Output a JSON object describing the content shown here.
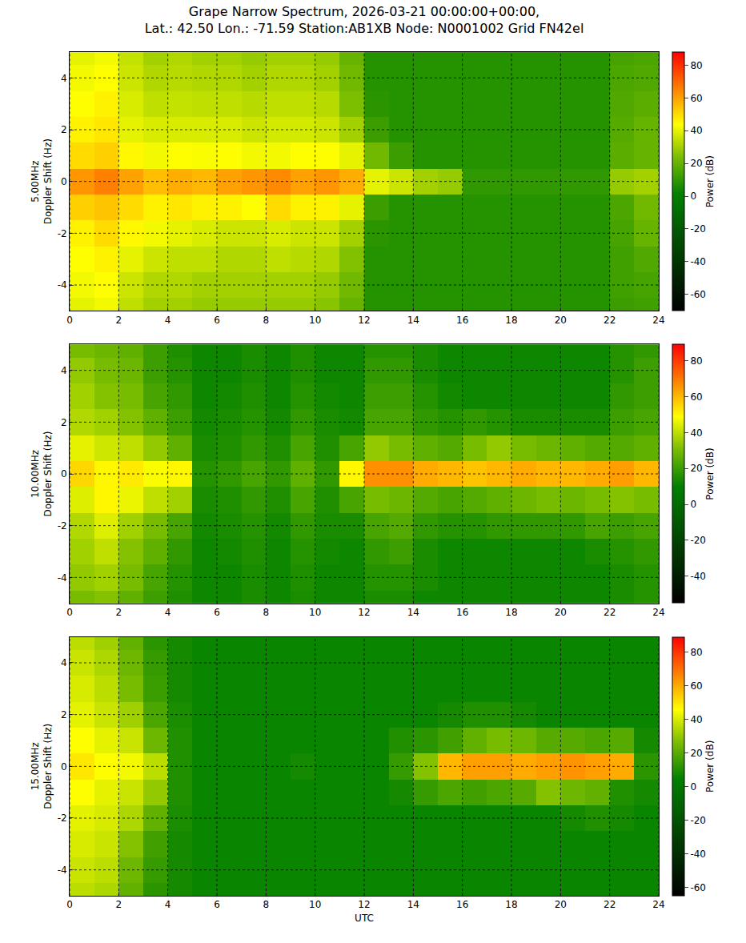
{
  "title": "Grape Narrow Spectrum, 2026-03-21 00:00:00+00:00,\nLat.: 42.50 Lon.: -71.59 Station:AB1XB Node: N0001002 Grid FN42el",
  "chart_data": [
    {
      "type": "heatmap",
      "y_label": "5.00MHz\nDoppler Shift (Hz)",
      "xlim": [
        0,
        24
      ],
      "xticks": [
        0,
        2,
        4,
        6,
        8,
        10,
        12,
        14,
        16,
        18,
        20,
        22,
        24
      ],
      "ylim": [
        -5,
        5
      ],
      "yticks": [
        -4,
        -2,
        0,
        2,
        4
      ],
      "grid": true,
      "x": [
        0.5,
        1.5,
        2.5,
        3.5,
        4.5,
        5.5,
        6.5,
        7.5,
        8.5,
        9.5,
        10.5,
        11.5,
        12.5,
        13.5,
        14.5,
        15.5,
        16.5,
        17.5,
        18.5,
        19.5,
        20.5,
        21.5,
        22.5,
        23.5
      ],
      "y": [
        -5,
        -4,
        -3,
        -2,
        -1,
        0,
        1,
        2,
        3,
        4,
        5
      ],
      "z": [
        [
          40,
          42,
          34,
          30,
          30,
          28,
          28,
          28,
          28,
          28,
          26,
          20,
          8,
          8,
          8,
          8,
          8,
          8,
          8,
          8,
          8,
          8,
          12,
          13
        ],
        [
          42,
          44,
          36,
          32,
          32,
          30,
          30,
          30,
          30,
          30,
          28,
          22,
          8,
          8,
          8,
          8,
          8,
          8,
          8,
          8,
          8,
          8,
          13,
          14
        ],
        [
          44,
          46,
          40,
          36,
          34,
          34,
          32,
          32,
          34,
          33,
          32,
          25,
          8,
          8,
          8,
          8,
          8,
          8,
          8,
          8,
          8,
          8,
          13,
          16
        ],
        [
          46,
          50,
          45,
          42,
          40,
          38,
          36,
          36,
          38,
          36,
          36,
          30,
          9,
          8,
          8,
          8,
          8,
          8,
          8,
          8,
          8,
          8,
          14,
          20
        ],
        [
          52,
          54,
          50,
          46,
          48,
          46,
          46,
          44,
          50,
          46,
          46,
          40,
          12,
          8,
          8,
          8,
          8,
          8,
          8,
          8,
          8,
          8,
          15,
          22
        ],
        [
          62,
          66,
          60,
          55,
          58,
          56,
          60,
          62,
          64,
          60,
          62,
          58,
          40,
          36,
          30,
          28,
          10,
          10,
          10,
          10,
          10,
          10,
          28,
          30
        ],
        [
          50,
          52,
          45,
          42,
          44,
          43,
          44,
          42,
          42,
          44,
          44,
          40,
          22,
          12,
          8,
          8,
          8,
          8,
          8,
          8,
          8,
          8,
          18,
          20
        ],
        [
          46,
          48,
          40,
          38,
          38,
          38,
          38,
          36,
          37,
          37,
          36,
          30,
          12,
          8,
          8,
          8,
          8,
          8,
          8,
          8,
          8,
          8,
          17,
          20
        ],
        [
          44,
          46,
          38,
          34,
          35,
          34,
          34,
          33,
          34,
          34,
          33,
          24,
          9,
          8,
          8,
          8,
          8,
          8,
          8,
          8,
          8,
          8,
          16,
          18
        ],
        [
          42,
          44,
          36,
          32,
          33,
          32,
          32,
          30,
          32,
          32,
          30,
          22,
          8,
          8,
          8,
          8,
          8,
          8,
          8,
          8,
          8,
          8,
          15,
          16
        ],
        [
          40,
          42,
          35,
          30,
          32,
          30,
          30,
          28,
          30,
          30,
          28,
          20,
          8,
          8,
          8,
          8,
          8,
          8,
          8,
          8,
          8,
          8,
          14,
          15
        ]
      ],
      "colorbar": {
        "title": "Power (dB)",
        "range": [
          -70,
          88
        ],
        "ticks": [
          -60,
          -40,
          -20,
          0,
          20,
          40,
          60,
          80
        ]
      }
    },
    {
      "type": "heatmap",
      "y_label": "10.00MHz\nDoppler Shift (Hz)",
      "xlim": [
        0,
        24
      ],
      "xticks": [
        0,
        2,
        4,
        6,
        8,
        10,
        12,
        14,
        16,
        18,
        20,
        22,
        24
      ],
      "ylim": [
        -5,
        5
      ],
      "yticks": [
        -4,
        -2,
        0,
        2,
        4
      ],
      "grid": true,
      "x": [
        0.5,
        1.5,
        2.5,
        3.5,
        4.5,
        5.5,
        6.5,
        7.5,
        8.5,
        9.5,
        10.5,
        11.5,
        12.5,
        13.5,
        14.5,
        15.5,
        16.5,
        17.5,
        18.5,
        19.5,
        20.5,
        21.5,
        22.5,
        23.5
      ],
      "y": [
        -5,
        -4,
        -3,
        -2,
        -1,
        0,
        1,
        2,
        3,
        4,
        5
      ],
      "z": [
        [
          30,
          32,
          26,
          20,
          15,
          12,
          12,
          14,
          12,
          14,
          12,
          12,
          14,
          14,
          12,
          12,
          12,
          12,
          12,
          12,
          12,
          12,
          14,
          16
        ],
        [
          34,
          36,
          30,
          22,
          16,
          12,
          12,
          14,
          12,
          15,
          12,
          12,
          16,
          16,
          14,
          12,
          12,
          12,
          12,
          12,
          12,
          12,
          14,
          16
        ],
        [
          36,
          40,
          32,
          26,
          18,
          12,
          13,
          15,
          12,
          16,
          13,
          12,
          18,
          20,
          14,
          12,
          12,
          12,
          12,
          12,
          12,
          14,
          16,
          18
        ],
        [
          38,
          44,
          36,
          30,
          22,
          13,
          14,
          16,
          13,
          18,
          14,
          14,
          22,
          24,
          18,
          16,
          16,
          18,
          18,
          18,
          18,
          22,
          20,
          22
        ],
        [
          44,
          50,
          46,
          40,
          36,
          14,
          15,
          18,
          15,
          22,
          15,
          22,
          30,
          28,
          24,
          22,
          24,
          26,
          28,
          30,
          28,
          30,
          32,
          30
        ],
        [
          55,
          50,
          52,
          48,
          50,
          16,
          18,
          22,
          18,
          26,
          18,
          50,
          66,
          66,
          62,
          60,
          58,
          60,
          62,
          60,
          60,
          62,
          64,
          60
        ],
        [
          45,
          42,
          40,
          34,
          26,
          14,
          15,
          18,
          15,
          22,
          15,
          22,
          34,
          30,
          26,
          24,
          30,
          34,
          30,
          28,
          26,
          24,
          24,
          26
        ],
        [
          38,
          36,
          32,
          26,
          20,
          13,
          14,
          16,
          13,
          18,
          14,
          13,
          22,
          22,
          18,
          16,
          18,
          16,
          14,
          14,
          14,
          14,
          20,
          22
        ],
        [
          36,
          32,
          30,
          22,
          18,
          12,
          13,
          15,
          12,
          16,
          13,
          12,
          20,
          20,
          16,
          13,
          12,
          12,
          12,
          12,
          12,
          12,
          18,
          20
        ],
        [
          34,
          30,
          28,
          20,
          16,
          12,
          12,
          14,
          12,
          15,
          12,
          12,
          18,
          18,
          14,
          12,
          12,
          12,
          12,
          12,
          12,
          12,
          16,
          20
        ],
        [
          30,
          28,
          26,
          20,
          15,
          12,
          12,
          14,
          12,
          15,
          12,
          12,
          16,
          16,
          14,
          12,
          12,
          12,
          12,
          12,
          12,
          12,
          16,
          18
        ]
      ],
      "colorbar": {
        "title": "Power (dB)",
        "range": [
          -55,
          89
        ],
        "ticks": [
          -40,
          -20,
          0,
          20,
          40,
          60,
          80
        ]
      }
    },
    {
      "type": "heatmap",
      "y_label": "15.00MHz\nDoppler Shift (Hz)",
      "x_label": "UTC",
      "xlim": [
        0,
        24
      ],
      "xticks": [
        0,
        2,
        4,
        6,
        8,
        10,
        12,
        14,
        16,
        18,
        20,
        22,
        24
      ],
      "ylim": [
        -5,
        5
      ],
      "yticks": [
        -4,
        -2,
        0,
        2,
        4
      ],
      "grid": true,
      "x": [
        0.5,
        1.5,
        2.5,
        3.5,
        4.5,
        5.5,
        6.5,
        7.5,
        8.5,
        9.5,
        10.5,
        11.5,
        12.5,
        13.5,
        14.5,
        15.5,
        16.5,
        17.5,
        18.5,
        19.5,
        20.5,
        21.5,
        22.5,
        23.5
      ],
      "y": [
        -5,
        -4,
        -3,
        -2,
        -1,
        0,
        1,
        2,
        3,
        4,
        5
      ],
      "z": [
        [
          36,
          34,
          22,
          12,
          8,
          6,
          6,
          6,
          6,
          6,
          6,
          6,
          6,
          6,
          6,
          6,
          6,
          6,
          6,
          6,
          6,
          6,
          6,
          6
        ],
        [
          38,
          36,
          24,
          14,
          8,
          6,
          6,
          6,
          6,
          6,
          6,
          6,
          6,
          6,
          6,
          6,
          6,
          6,
          6,
          6,
          6,
          6,
          6,
          6
        ],
        [
          40,
          38,
          28,
          16,
          8,
          6,
          6,
          6,
          6,
          6,
          6,
          6,
          6,
          6,
          6,
          6,
          6,
          6,
          6,
          6,
          6,
          6,
          6,
          6
        ],
        [
          42,
          40,
          34,
          22,
          9,
          6,
          6,
          6,
          6,
          6,
          6,
          6,
          6,
          6,
          6,
          6,
          6,
          6,
          6,
          6,
          8,
          10,
          8,
          6
        ],
        [
          46,
          42,
          38,
          30,
          10,
          6,
          6,
          6,
          6,
          6,
          6,
          6,
          6,
          8,
          14,
          18,
          16,
          18,
          20,
          28,
          24,
          22,
          10,
          8
        ],
        [
          50,
          46,
          44,
          36,
          10,
          6,
          6,
          6,
          6,
          8,
          6,
          6,
          6,
          14,
          28,
          58,
          62,
          62,
          60,
          62,
          64,
          62,
          60,
          12
        ],
        [
          46,
          42,
          38,
          24,
          10,
          6,
          6,
          6,
          6,
          6,
          6,
          6,
          6,
          10,
          12,
          16,
          22,
          26,
          24,
          20,
          20,
          18,
          20,
          8
        ],
        [
          42,
          38,
          32,
          18,
          9,
          6,
          6,
          6,
          6,
          6,
          6,
          6,
          6,
          6,
          6,
          8,
          10,
          10,
          8,
          6,
          6,
          6,
          6,
          6
        ],
        [
          40,
          36,
          26,
          15,
          8,
          6,
          6,
          6,
          6,
          6,
          6,
          6,
          6,
          6,
          6,
          6,
          6,
          6,
          6,
          6,
          6,
          6,
          6,
          6
        ],
        [
          38,
          34,
          24,
          14,
          8,
          6,
          6,
          6,
          6,
          6,
          6,
          6,
          6,
          6,
          6,
          6,
          6,
          6,
          6,
          6,
          6,
          6,
          6,
          6
        ],
        [
          36,
          32,
          22,
          12,
          8,
          6,
          6,
          6,
          6,
          6,
          6,
          6,
          6,
          6,
          6,
          6,
          6,
          6,
          6,
          6,
          6,
          6,
          6,
          6
        ]
      ],
      "colorbar": {
        "title": "Power (dB)",
        "range": [
          -65,
          89
        ],
        "ticks": [
          -60,
          -40,
          -20,
          0,
          20,
          40,
          60,
          80
        ]
      }
    }
  ]
}
